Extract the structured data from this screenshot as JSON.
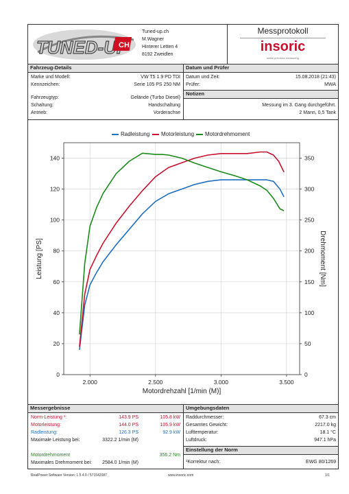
{
  "header": {
    "logo_text": "TUNED-UP",
    "logo_suffix": "CH",
    "company_lines": [
      "Tuned-up.ch",
      "M.Wagner",
      "Hinterer Letten 4",
      "8192 Zweidlen"
    ],
    "protocol_title": "Messprotokoll",
    "brand": "insoric",
    "brand_tagline": "swiss precision measuring"
  },
  "vehicle": {
    "title": "Fahrzeug-Details",
    "rows": [
      {
        "label": "Marke und Modell:",
        "value": "VW T5 1.9 PD TDI"
      },
      {
        "label": "Kennzeichen:",
        "value": "Serie 105 PS 250 NM"
      },
      {
        "label": "Fahrzeugtyp:",
        "value": "Gelände (Turbo Diesel)"
      },
      {
        "label": "Schaltung:",
        "value": "Handschaltung"
      },
      {
        "label": "Antrieb:",
        "value": "Vorderachse"
      }
    ]
  },
  "date_tester": {
    "title": "Datum und Prüfer",
    "rows": [
      {
        "label": "Datum und Zeit:",
        "value": "15.08.2018 (21:43)"
      },
      {
        "label": "Prüfer:",
        "value": "MWA"
      }
    ]
  },
  "notes": {
    "title": "Notizen",
    "lines": [
      "Messung im 3. Gang durchgeführt.",
      "2 Mann, 0,5 Tank"
    ]
  },
  "chart_data": {
    "type": "line",
    "legend": [
      "Radleistung",
      "Motorleistung",
      "Motordrehmoment"
    ],
    "legend_colors": [
      "#1e6fc0",
      "#c8102e",
      "#1a8a1a"
    ],
    "xlabel": "Motordrehzahl [1/min (M)]",
    "ylabel": "Leistung [PS]",
    "y2label": "Drehmoment [Nm]",
    "xlim": [
      1800,
      3600
    ],
    "ylim": [
      0,
      150
    ],
    "y2lim": [
      0,
      375
    ],
    "xticks": [
      "2.000",
      "2.500",
      "3.000",
      "3.500"
    ],
    "xtick_values": [
      2000,
      2500,
      3000,
      3500
    ],
    "yticks": [
      0,
      20,
      40,
      60,
      80,
      100,
      120,
      140
    ],
    "y2ticks": [
      0,
      50,
      100,
      150,
      200,
      250,
      300,
      350
    ],
    "series": [
      {
        "name": "Radleistung",
        "axis": "left",
        "color": "#1e6fc0",
        "x": [
          1920,
          1960,
          2000,
          2050,
          2100,
          2200,
          2300,
          2400,
          2500,
          2600,
          2700,
          2800,
          2900,
          3000,
          3100,
          3200,
          3300,
          3350,
          3400,
          3450,
          3480
        ],
        "y": [
          16,
          45,
          58,
          66,
          73,
          84,
          94,
          104,
          112,
          117,
          120,
          123,
          125,
          126,
          126,
          126,
          126,
          126,
          125,
          120,
          115
        ]
      },
      {
        "name": "Motorleistung",
        "axis": "left",
        "color": "#c8102e",
        "x": [
          1920,
          1960,
          2000,
          2050,
          2100,
          2200,
          2300,
          2400,
          2500,
          2600,
          2700,
          2800,
          2900,
          3000,
          3100,
          3200,
          3300,
          3350,
          3400,
          3440,
          3480
        ],
        "y": [
          18,
          52,
          68,
          77,
          85,
          98,
          109,
          119,
          128,
          134,
          137,
          140,
          142,
          143,
          143,
          143,
          144,
          144,
          142,
          138,
          131
        ]
      },
      {
        "name": "Motordrehmoment",
        "axis": "right",
        "color": "#1a8a1a",
        "x": [
          1920,
          1960,
          2000,
          2050,
          2100,
          2200,
          2300,
          2400,
          2500,
          2550,
          2600,
          2700,
          2800,
          2900,
          3000,
          3100,
          3200,
          3300,
          3350,
          3400,
          3450,
          3480
        ],
        "y": [
          65,
          180,
          240,
          270,
          293,
          325,
          345,
          358,
          356,
          356,
          355,
          350,
          342,
          335,
          328,
          322,
          315,
          305,
          298,
          285,
          268,
          265
        ]
      }
    ]
  },
  "results": {
    "title": "Messergebnisse",
    "rows": [
      {
        "label": "Norm-Leistung ¹:",
        "v1": "143.9 PS",
        "v2": "105.8 kW",
        "color": "red"
      },
      {
        "label": "Motorleistung:",
        "v1": "144.0 PS",
        "v2": "105.9 kW",
        "color": "red"
      },
      {
        "label": "Radleistung:",
        "v1": "126.3 PS",
        "v2": "92.9 kW",
        "color": "blue"
      },
      {
        "label": "Maximale Leistung bei:",
        "v1": "3322.2 1/min (M)",
        "v2": "",
        "color": "plain"
      }
    ],
    "torque_rows": [
      {
        "label": "Motordrehmoment",
        "v1": "",
        "v2": "356.2 Nm",
        "color": "green"
      },
      {
        "label": "Maximales Drehmoment bei:",
        "v1": "2584.0 1/min (M)",
        "v2": "",
        "color": "plain"
      }
    ]
  },
  "environment": {
    "title": "Umgebungsdaten",
    "rows": [
      {
        "label": "Raddurchmesser:",
        "value": "67.3 cm"
      },
      {
        "label": "Gesamtes Gewicht:",
        "value": "2217.0 kg"
      },
      {
        "label": "Lufttemperatur:",
        "value": "18.1 °C"
      },
      {
        "label": "Luftdruck:",
        "value": "947.1 hPa"
      }
    ]
  },
  "norm": {
    "title": "Einstellung der Norm",
    "label": "¹Korrektur nach:",
    "value": "EWG 80/1269"
  },
  "footer": {
    "software": "RealPower Software Version: 1.5.4.0 / 571542087",
    "website": "www.insoric.com",
    "page": "1/1"
  }
}
